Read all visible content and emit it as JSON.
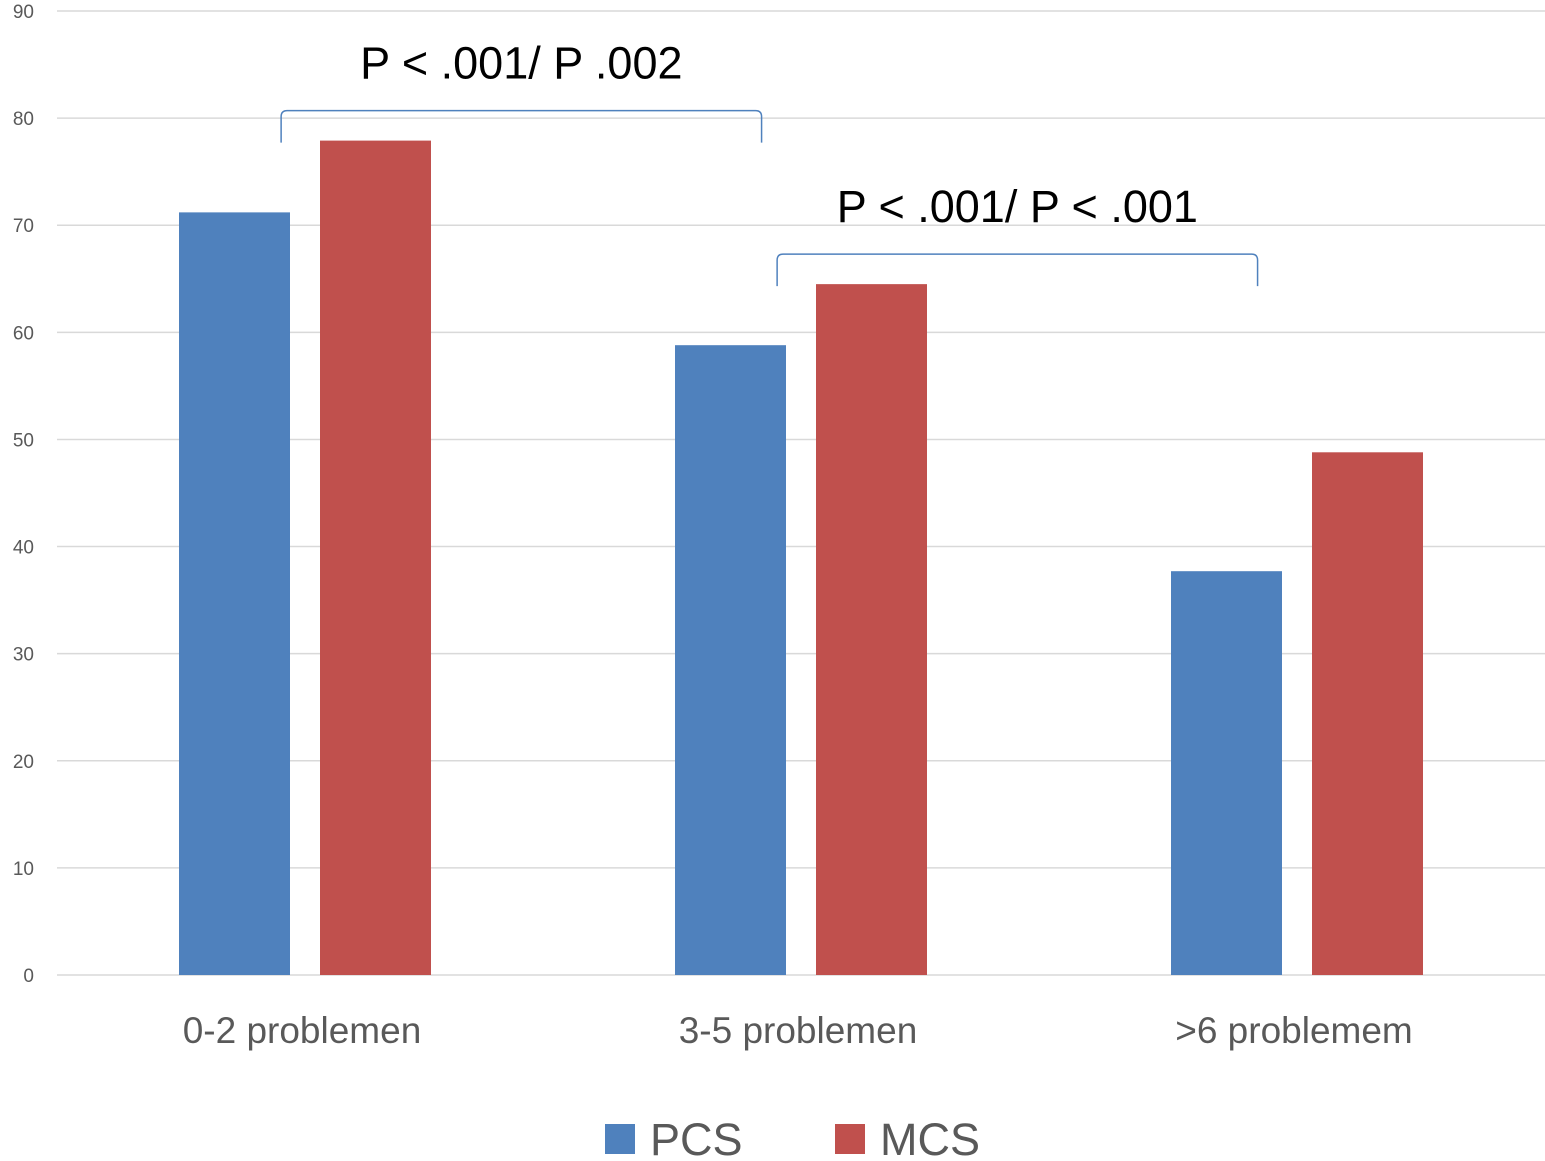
{
  "chart_data": {
    "type": "bar",
    "title": "",
    "xlabel": "",
    "ylabel": "",
    "categories": [
      "0-2 problemen",
      "3-5 problemen",
      ">6 problemem"
    ],
    "series": [
      {
        "name": "PCS",
        "color": "#4f81bd",
        "values": [
          71.2,
          58.8,
          37.7
        ]
      },
      {
        "name": "MCS",
        "color": "#c0504d",
        "values": [
          77.9,
          64.5,
          48.8
        ]
      }
    ],
    "ylim": [
      0,
      90
    ],
    "yticks": [
      "0",
      "10",
      "20",
      "30",
      "40",
      "50",
      "60",
      "70",
      "80",
      "90"
    ],
    "grid": true,
    "legend": "bottom-center",
    "annotations": [
      {
        "text": "P < .001/ P .002",
        "from_category": 0,
        "to_category": 1
      },
      {
        "text": "P < .001/ P < .001",
        "from_category": 1,
        "to_category": 2
      }
    ],
    "bracket_color": "#4f81bd"
  }
}
